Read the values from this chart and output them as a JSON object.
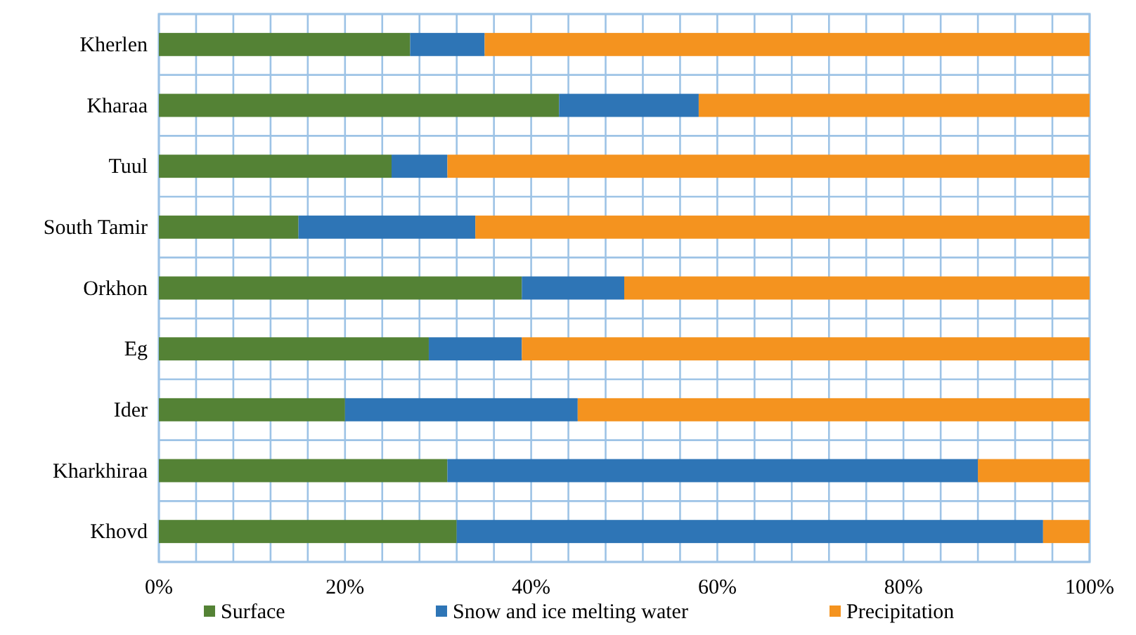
{
  "chart_data": {
    "type": "bar",
    "orientation": "horizontal",
    "stacked": true,
    "categories": [
      "Kherlen",
      "Kharaa",
      "Tuul",
      "South Tamir",
      "Orkhon",
      "Eg",
      "Ider",
      "Kharkhiraa",
      "Khovd"
    ],
    "series": [
      {
        "name": "Surface",
        "color": "#548235",
        "values": [
          27,
          43,
          25,
          15,
          39,
          29,
          20,
          31,
          32
        ]
      },
      {
        "name": "Snow and ice melting water",
        "color": "#2e75b6",
        "values": [
          8,
          15,
          6,
          19,
          11,
          10,
          25,
          57,
          63
        ]
      },
      {
        "name": "Precipitation",
        "color": "#f4931f",
        "values": [
          65,
          42,
          69,
          66,
          50,
          61,
          55,
          12,
          5
        ]
      }
    ],
    "xlim": [
      0,
      100
    ],
    "xticks": [
      {
        "value": 0,
        "label": "0%"
      },
      {
        "value": 4,
        "label": null
      },
      {
        "value": 8,
        "label": null
      },
      {
        "value": 12,
        "label": null
      },
      {
        "value": 16,
        "label": null
      },
      {
        "value": 20,
        "label": "20%"
      },
      {
        "value": 24,
        "label": null
      },
      {
        "value": 28,
        "label": null
      },
      {
        "value": 32,
        "label": null
      },
      {
        "value": 36,
        "label": null
      },
      {
        "value": 40,
        "label": "40%"
      },
      {
        "value": 44,
        "label": null
      },
      {
        "value": 48,
        "label": null
      },
      {
        "value": 52,
        "label": null
      },
      {
        "value": 56,
        "label": null
      },
      {
        "value": 60,
        "label": "60%"
      },
      {
        "value": 64,
        "label": null
      },
      {
        "value": 68,
        "label": null
      },
      {
        "value": 72,
        "label": null
      },
      {
        "value": 76,
        "label": null
      },
      {
        "value": 80,
        "label": "80%"
      },
      {
        "value": 84,
        "label": null
      },
      {
        "value": 88,
        "label": null
      },
      {
        "value": 92,
        "label": null
      },
      {
        "value": 96,
        "label": null
      },
      {
        "value": 100,
        "label": "100%"
      }
    ],
    "grid": true,
    "legend": "bottom"
  }
}
